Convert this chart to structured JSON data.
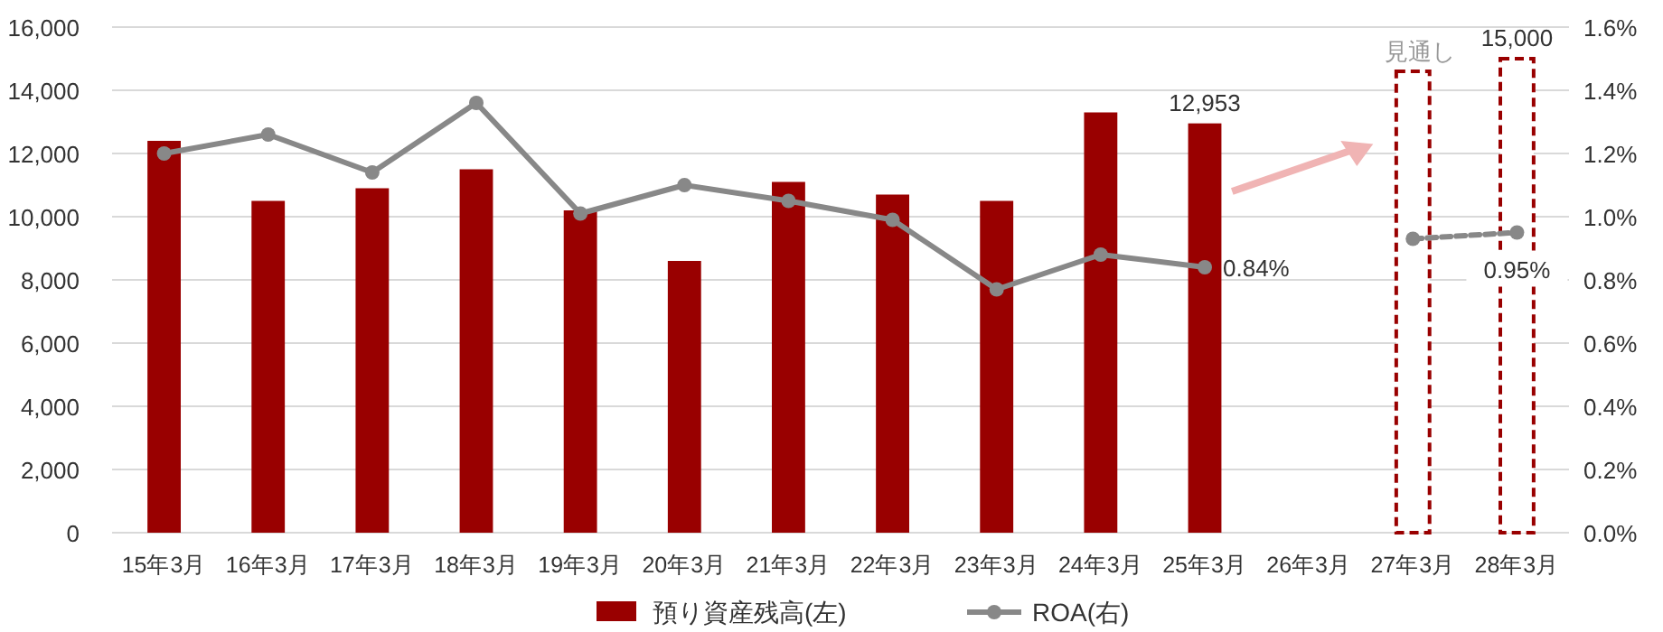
{
  "chart_data": {
    "type": "bar",
    "categories": [
      "15年3月",
      "16年3月",
      "17年3月",
      "18年3月",
      "19年3月",
      "20年3月",
      "21年3月",
      "22年3月",
      "23年3月",
      "24年3月",
      "25年3月",
      "26年3月",
      "27年3月",
      "28年3月"
    ],
    "series": [
      {
        "name": "預り資産残高(左)",
        "color": "#990000",
        "values": [
          12400,
          10500,
          10900,
          11500,
          10200,
          8600,
          11100,
          10700,
          10500,
          13300,
          12953,
          null,
          null,
          null
        ],
        "value_labels": [
          null,
          null,
          null,
          null,
          null,
          null,
          null,
          null,
          null,
          null,
          "12,953",
          null,
          null,
          null
        ]
      },
      {
        "color": "#990000",
        "line_style": "dashed",
        "values": [
          null,
          null,
          null,
          null,
          null,
          null,
          null,
          null,
          null,
          null,
          null,
          null,
          14600,
          15000
        ],
        "value_labels": [
          null,
          null,
          null,
          null,
          null,
          null,
          null,
          null,
          null,
          null,
          null,
          null,
          null,
          "15,000"
        ]
      },
      {
        "name": "ROA(右)",
        "type": "line",
        "axis": "y2",
        "color": "#888888",
        "marker": "circle",
        "values": [
          1.2,
          1.26,
          1.14,
          1.36,
          1.01,
          1.1,
          1.05,
          0.99,
          0.77,
          0.88,
          0.84,
          null,
          null,
          null
        ],
        "value_labels": [
          null,
          null,
          null,
          null,
          null,
          null,
          null,
          null,
          null,
          null,
          "0.84%",
          null,
          null,
          null
        ]
      },
      {
        "type": "line",
        "axis": "y2",
        "color": "#888888",
        "marker": "circle",
        "line_style": "dashed",
        "values": [
          null,
          null,
          null,
          null,
          null,
          null,
          null,
          null,
          null,
          null,
          null,
          null,
          0.93,
          0.95
        ],
        "value_labels": [
          null,
          null,
          null,
          null,
          null,
          null,
          null,
          null,
          null,
          null,
          null,
          null,
          null,
          "0.95%"
        ]
      }
    ],
    "ylim": [
      0,
      16000
    ],
    "yticks": [
      {
        "value": 0,
        "label": "0"
      },
      {
        "value": 2000,
        "label": "2,000"
      },
      {
        "value": 4000,
        "label": "4,000"
      },
      {
        "value": 6000,
        "label": "6,000"
      },
      {
        "value": 8000,
        "label": "8,000"
      },
      {
        "value": 10000,
        "label": "10,000"
      },
      {
        "value": 12000,
        "label": "12,000"
      },
      {
        "value": 14000,
        "label": "14,000"
      },
      {
        "value": 16000,
        "label": "16,000"
      }
    ],
    "y2lim": [
      0,
      1.6
    ],
    "y2ticks": [
      {
        "value": 0,
        "label": "0.0%"
      },
      {
        "value": 0.2,
        "label": "0.2%"
      },
      {
        "value": 0.4,
        "label": "0.4%"
      },
      {
        "value": 0.6,
        "label": "0.6%"
      },
      {
        "value": 0.8,
        "label": "0.8%"
      },
      {
        "value": 1.0,
        "label": "1.0%"
      },
      {
        "value": 1.2,
        "label": "1.2%"
      },
      {
        "value": 1.4,
        "label": "1.4%"
      },
      {
        "value": 1.6,
        "label": "1.6%"
      }
    ],
    "annotations": [
      "見通し"
    ],
    "grid": "y",
    "legend": "bottom"
  }
}
